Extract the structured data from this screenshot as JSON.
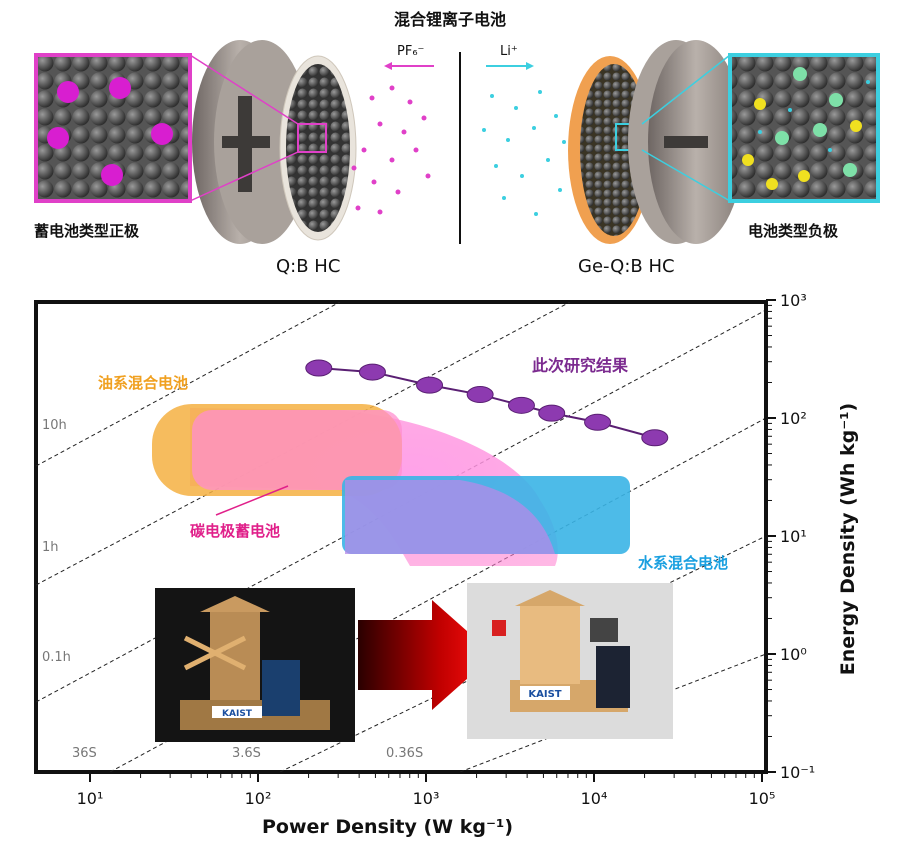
{
  "top": {
    "title": "混合锂离子电池",
    "ion_left": "PF₆⁻",
    "ion_right": "Li⁺",
    "left_caption": "蓄电池类型正极",
    "right_caption": "电池类型负极",
    "left_electrode": "Q:B HC",
    "right_electrode": "Ge-Q:B HC"
  },
  "chart": {
    "xlabel": "Power Density (W kg⁻¹)",
    "ylabel": "Energy Density (Wh kg⁻¹)",
    "xticks": [
      "10¹",
      "10²",
      "10³",
      "10⁴",
      "10⁵"
    ],
    "yticks": [
      "10⁻¹",
      "10⁰",
      "10¹",
      "10²",
      "10³"
    ],
    "time_labels": [
      "10h",
      "1h",
      "0.1h",
      "36S",
      "3.6S",
      "0.36S"
    ],
    "regions": {
      "organic_hybrid": "油系混合电池",
      "carbon_supercap": "碳电极蓄电池",
      "aqueous_hybrid": "水系混合电池",
      "this_work": "此次研究结果"
    },
    "colors": {
      "organic": "#f5b042",
      "pink": "#ff8fd6",
      "aqueous": "#3ab4e6",
      "this_work": "#7b2a8f",
      "label_orange": "#f0a020",
      "label_pink": "#e0208a",
      "label_blue": "#1aa0e0"
    },
    "photo_labels": [
      "KAIST",
      "KAIST"
    ]
  },
  "chart_data": {
    "type": "scatter",
    "xlabel": "Power Density (W kg⁻¹)",
    "ylabel": "Energy Density (Wh kg⁻¹)",
    "x_scale": "log",
    "y_scale": "log",
    "xlim": [
      5,
      100000
    ],
    "ylim": [
      0.1,
      1000
    ],
    "series": [
      {
        "name": "此次研究结果",
        "x": [
          230,
          480,
          1050,
          2100,
          3700,
          5600,
          10500,
          23000
        ],
        "y": [
          265,
          245,
          190,
          158,
          128,
          110,
          92,
          68
        ]
      }
    ]
  }
}
